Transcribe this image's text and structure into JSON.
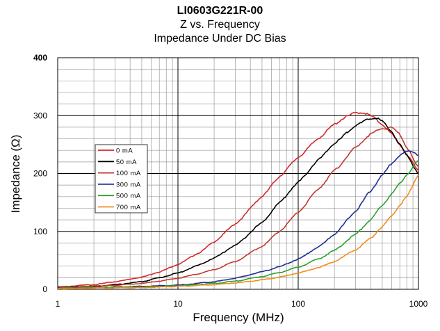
{
  "chart_data": {
    "type": "line",
    "title": "LI0603G221R-00",
    "subtitle": "Z vs. Frequency",
    "subtitle2": "Impedance Under DC Bias",
    "xlabel": "Frequency (MHz)",
    "ylabel": "Impedance (Ω)",
    "x_scale": "log",
    "xlim": [
      1,
      1000
    ],
    "ylim": [
      0,
      400
    ],
    "x_ticks": [
      "1",
      "10",
      "100",
      "1000"
    ],
    "y_ticks": [
      "0",
      "100",
      "200",
      "300",
      "400"
    ],
    "grid": true,
    "legend_placement": "left",
    "series": [
      {
        "name": "0 mA",
        "color": "#d62728",
        "x": [
          1,
          2,
          3,
          5,
          7,
          10,
          15,
          20,
          30,
          50,
          70,
          100,
          150,
          200,
          250,
          300,
          350,
          400,
          500,
          600,
          700,
          800,
          1000
        ],
        "y": [
          4,
          8,
          13,
          21,
          30,
          43,
          63,
          82,
          113,
          160,
          195,
          228,
          262,
          285,
          298,
          305,
          305,
          300,
          285,
          268,
          250,
          232,
          205
        ]
      },
      {
        "name": "50 mA",
        "color": "#000000",
        "x": [
          1,
          2,
          3,
          5,
          7,
          10,
          15,
          20,
          30,
          50,
          70,
          100,
          150,
          200,
          300,
          400,
          450,
          500,
          600,
          700,
          800,
          1000
        ],
        "y": [
          3,
          5,
          8,
          13,
          20,
          28,
          42,
          54,
          76,
          115,
          150,
          185,
          225,
          252,
          283,
          295,
          296,
          290,
          272,
          250,
          232,
          200
        ]
      },
      {
        "name": "100 mA",
        "color": "#c0392b",
        "x": [
          1,
          2,
          3,
          5,
          7,
          10,
          15,
          20,
          30,
          50,
          70,
          100,
          150,
          200,
          300,
          400,
          500,
          600,
          700,
          800,
          1000
        ],
        "y": [
          3,
          5,
          7,
          10,
          14,
          19,
          27,
          34,
          48,
          74,
          100,
          133,
          175,
          205,
          245,
          268,
          278,
          279,
          268,
          245,
          210
        ]
      },
      {
        "name": "300 mA",
        "color": "#1f2f8f",
        "x": [
          1,
          2,
          5,
          10,
          20,
          30,
          50,
          70,
          100,
          150,
          200,
          300,
          400,
          500,
          600,
          700,
          800,
          900,
          1000
        ],
        "y": [
          2,
          3,
          5,
          7,
          13,
          19,
          30,
          39,
          52,
          74,
          95,
          135,
          170,
          197,
          218,
          232,
          238,
          238,
          232
        ]
      },
      {
        "name": "500 mA",
        "color": "#2ca02c",
        "x": [
          1,
          2,
          5,
          10,
          20,
          30,
          50,
          70,
          100,
          150,
          200,
          300,
          400,
          500,
          600,
          700,
          800,
          1000
        ],
        "y": [
          2,
          3,
          4,
          6,
          10,
          14,
          22,
          29,
          38,
          53,
          67,
          95,
          120,
          145,
          165,
          183,
          198,
          222
        ]
      },
      {
        "name": "700 mA",
        "color": "#f28c1c",
        "x": [
          1,
          2,
          5,
          10,
          20,
          30,
          50,
          70,
          100,
          150,
          200,
          300,
          400,
          500,
          600,
          700,
          800,
          1000
        ],
        "y": [
          1,
          2,
          3,
          5,
          8,
          11,
          16,
          21,
          28,
          38,
          48,
          68,
          88,
          108,
          127,
          145,
          160,
          198
        ]
      }
    ]
  }
}
